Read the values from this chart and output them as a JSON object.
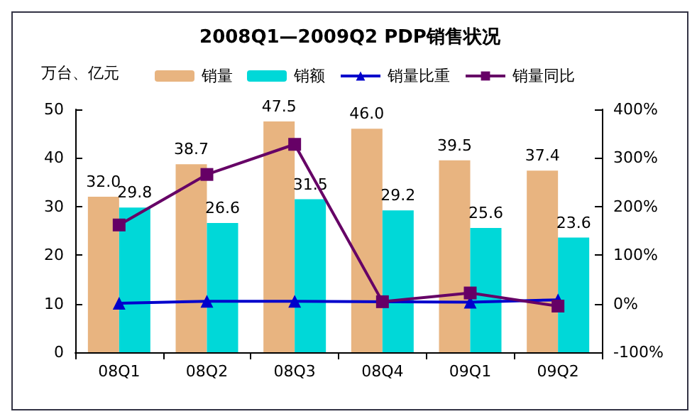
{
  "chart_data": {
    "type": "bar",
    "title": "2008Q1—2009Q2 PDP销售状况",
    "ylabel": "万台、亿元",
    "categories": [
      "08Q1",
      "08Q2",
      "08Q3",
      "08Q4",
      "09Q1",
      "09Q2"
    ],
    "series": [
      {
        "name": "销量",
        "color": "#e8b480",
        "values": [
          32.0,
          38.7,
          47.5,
          46.0,
          39.5,
          37.4
        ],
        "value_labels": [
          "32.0",
          "38.7",
          "47.5",
          "46.0",
          "39.5",
          "37.4"
        ]
      },
      {
        "name": "销额",
        "color": "#00d8d8",
        "values": [
          29.8,
          26.6,
          31.5,
          29.2,
          25.6,
          23.6
        ],
        "value_labels": [
          "29.8",
          "26.6",
          "31.5",
          "29.2",
          "25.6",
          "23.6"
        ]
      },
      {
        "name": "销量比重",
        "type": "line",
        "axis": "y2",
        "color": "#0000cc",
        "marker": "triangle",
        "values": [
          1,
          5,
          5,
          null,
          3,
          8
        ]
      },
      {
        "name": "销量同比",
        "type": "line",
        "axis": "y2",
        "color": "#660066",
        "marker": "square",
        "values": [
          162,
          266,
          328,
          4,
          22,
          -5
        ]
      }
    ],
    "ylim": [
      0,
      50
    ],
    "yticks": [
      0,
      10,
      20,
      30,
      40,
      50
    ],
    "y2lim": [
      -100,
      400
    ],
    "y2ticks": [
      {
        "value": -100,
        "label": "-100%"
      },
      {
        "value": 0,
        "label": "0%"
      },
      {
        "value": 100,
        "label": "100%"
      },
      {
        "value": 200,
        "label": "200%"
      },
      {
        "value": 300,
        "label": "300%"
      },
      {
        "value": 400,
        "label": "400%"
      }
    ],
    "grid": false,
    "legend": "top"
  }
}
